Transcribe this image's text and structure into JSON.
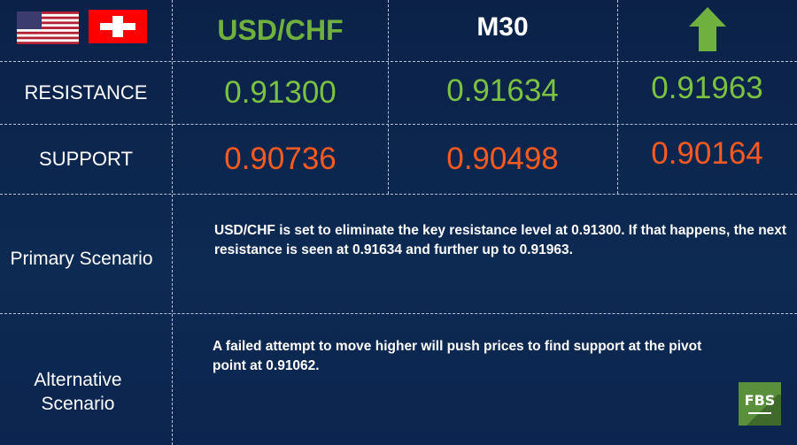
{
  "header": {
    "pair": "USD/CHF",
    "timeframe": "M30",
    "direction_icon": "arrow-up-icon",
    "flags": [
      "us-flag",
      "swiss-flag"
    ]
  },
  "rows": {
    "resistance": {
      "label": "RESISTANCE",
      "values": [
        "0.91300",
        "0.91634",
        "0.91963"
      ]
    },
    "support": {
      "label": "SUPPORT",
      "values": [
        "0.90736",
        "0.90498",
        "0.90164"
      ]
    }
  },
  "scenarios": {
    "primary": {
      "label": "Primary Scenario",
      "text": "USD/CHF is set to eliminate the key resistance level at 0.91300. If that happens, the next resistance is seen at 0.91634 and further up to 0.91963."
    },
    "alternative": {
      "label": "Alternative Scenario",
      "text": "A failed attempt to move higher will push prices to find support at the pivot point at 0.91062."
    }
  },
  "logo": {
    "text": "FBS"
  },
  "colors": {
    "resistance": "#7cc242",
    "support": "#ff5a1f",
    "background": "#0b2148",
    "logo": "#5a8f3c"
  }
}
